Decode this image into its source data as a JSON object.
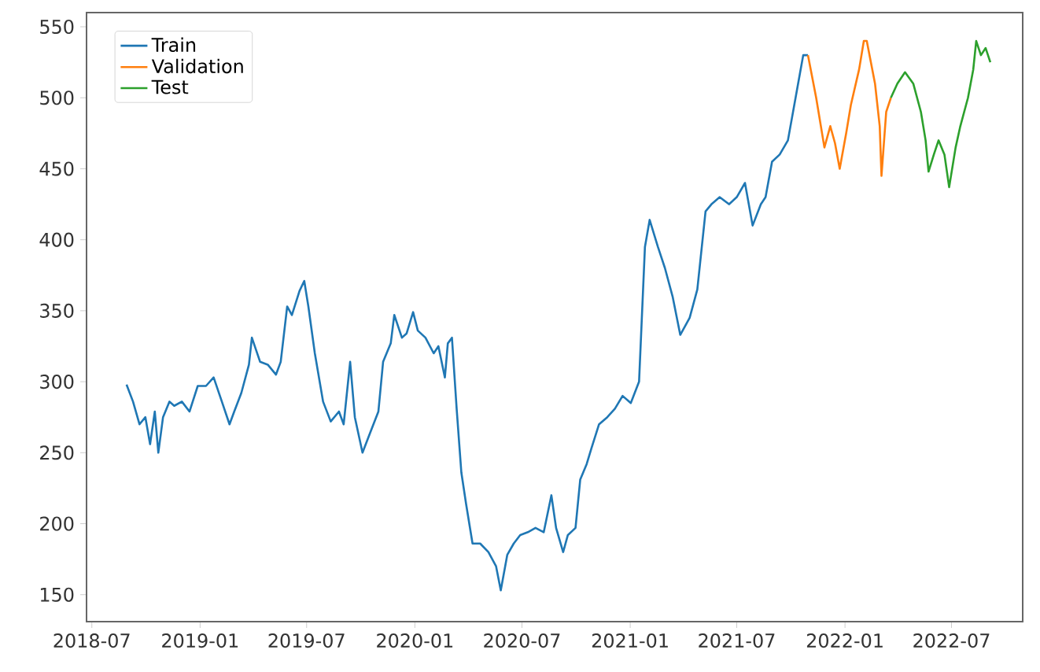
{
  "chart_data": {
    "type": "line",
    "xlim": [
      "2018-06-22",
      "2022-10-30"
    ],
    "ylim": [
      131,
      560
    ],
    "xticks": [
      {
        "value": "2018-07-01",
        "label": "2018-07"
      },
      {
        "value": "2019-01-01",
        "label": "2019-01"
      },
      {
        "value": "2019-07-01",
        "label": "2019-07"
      },
      {
        "value": "2020-01-01",
        "label": "2020-01"
      },
      {
        "value": "2020-07-01",
        "label": "2020-07"
      },
      {
        "value": "2021-01-01",
        "label": "2021-01"
      },
      {
        "value": "2021-07-01",
        "label": "2021-07"
      },
      {
        "value": "2022-01-01",
        "label": "2022-01"
      },
      {
        "value": "2022-07-01",
        "label": "2022-07"
      }
    ],
    "yticks": [
      150,
      200,
      250,
      300,
      350,
      400,
      450,
      500,
      550
    ],
    "legend": "top left",
    "series": [
      {
        "name": "Train",
        "color": "#1f77b4",
        "x": [
          "2018-08-29",
          "2018-09-09",
          "2018-09-20",
          "2018-09-30",
          "2018-10-08",
          "2018-10-16",
          "2018-10-22",
          "2018-10-30",
          "2018-11-10",
          "2018-11-18",
          "2018-12-01",
          "2018-12-14",
          "2018-12-28",
          "2019-01-11",
          "2019-01-24",
          "2019-02-07",
          "2019-02-20",
          "2019-02-28",
          "2019-03-12",
          "2019-03-25",
          "2019-03-30",
          "2019-04-13",
          "2019-04-26",
          "2019-05-10",
          "2019-05-18",
          "2019-05-29",
          "2019-06-06",
          "2019-06-19",
          "2019-06-27",
          "2019-07-04",
          "2019-07-15",
          "2019-07-29",
          "2019-08-11",
          "2019-08-25",
          "2019-09-02",
          "2019-09-13",
          "2019-09-21",
          "2019-10-04",
          "2019-10-17",
          "2019-10-31",
          "2019-11-08",
          "2019-11-21",
          "2019-11-27",
          "2019-12-10",
          "2019-12-18",
          "2019-12-29",
          "2020-01-06",
          "2020-01-19",
          "2020-02-02",
          "2020-02-10",
          "2020-02-21",
          "2020-02-26",
          "2020-03-04",
          "2020-03-12",
          "2020-03-20",
          "2020-03-28",
          "2020-04-08",
          "2020-04-21",
          "2020-05-05",
          "2020-05-18",
          "2020-05-26",
          "2020-06-06",
          "2020-06-17",
          "2020-06-28",
          "2020-07-11",
          "2020-07-24",
          "2020-08-07",
          "2020-08-20",
          "2020-08-28",
          "2020-09-09",
          "2020-09-17",
          "2020-09-30",
          "2020-10-08",
          "2020-10-19",
          "2020-10-27",
          "2020-11-09",
          "2020-11-23",
          "2020-12-06",
          "2020-12-19",
          "2021-01-02",
          "2021-01-16",
          "2021-01-26",
          "2021-02-03",
          "2021-02-17",
          "2021-03-01",
          "2021-03-14",
          "2021-03-27",
          "2021-04-12",
          "2021-04-25",
          "2021-05-09",
          "2021-05-19",
          "2021-06-02",
          "2021-06-18",
          "2021-07-01",
          "2021-07-15",
          "2021-07-28",
          "2021-08-11",
          "2021-08-19",
          "2021-08-30",
          "2021-09-12",
          "2021-09-26",
          "2021-10-09",
          "2021-10-22",
          "2021-10-30"
        ],
        "values": [
          298,
          286,
          270,
          275,
          256,
          279,
          250,
          275,
          286,
          283,
          286,
          279,
          297,
          297,
          303,
          286,
          270,
          279,
          292,
          312,
          331,
          314,
          312,
          305,
          314,
          353,
          347,
          364,
          371,
          353,
          320,
          286,
          272,
          279,
          270,
          314,
          275,
          250,
          264,
          279,
          314,
          327,
          347,
          331,
          334,
          349,
          336,
          331,
          320,
          325,
          303,
          327,
          331,
          281,
          236,
          214,
          186,
          186,
          180,
          170,
          153,
          178,
          186,
          192,
          194,
          197,
          194,
          220,
          197,
          180,
          192,
          197,
          231,
          242,
          253,
          270,
          275,
          281,
          290,
          285,
          300,
          395,
          414,
          395,
          380,
          360,
          333,
          345,
          365,
          420,
          425,
          430,
          425,
          430,
          440,
          410,
          425,
          430,
          455,
          460,
          470,
          500,
          530,
          530
        ]
      },
      {
        "name": "Validation",
        "color": "#ff7f0e",
        "x": [
          "2021-10-30",
          "2021-11-13",
          "2021-11-27",
          "2021-12-07",
          "2021-12-15",
          "2021-12-23",
          "2022-01-03",
          "2022-01-11",
          "2022-01-25",
          "2022-02-02",
          "2022-02-07",
          "2022-02-21",
          "2022-03-01",
          "2022-03-04",
          "2022-03-12",
          "2022-03-20"
        ],
        "values": [
          530,
          500,
          465,
          480,
          468,
          450,
          475,
          495,
          520,
          540,
          540,
          510,
          480,
          445,
          490,
          500
        ]
      },
      {
        "name": "Test",
        "color": "#2ca02c",
        "x": [
          "2022-03-20",
          "2022-03-31",
          "2022-04-13",
          "2022-04-27",
          "2022-05-10",
          "2022-05-18",
          "2022-05-23",
          "2022-06-01",
          "2022-06-09",
          "2022-06-19",
          "2022-06-27",
          "2022-07-08",
          "2022-07-16",
          "2022-07-29",
          "2022-08-07",
          "2022-08-12",
          "2022-08-20",
          "2022-08-28",
          "2022-09-05"
        ],
        "values": [
          500,
          510,
          518,
          510,
          490,
          470,
          448,
          460,
          470,
          460,
          437,
          465,
          480,
          500,
          520,
          540,
          530,
          535,
          525
        ]
      }
    ]
  }
}
